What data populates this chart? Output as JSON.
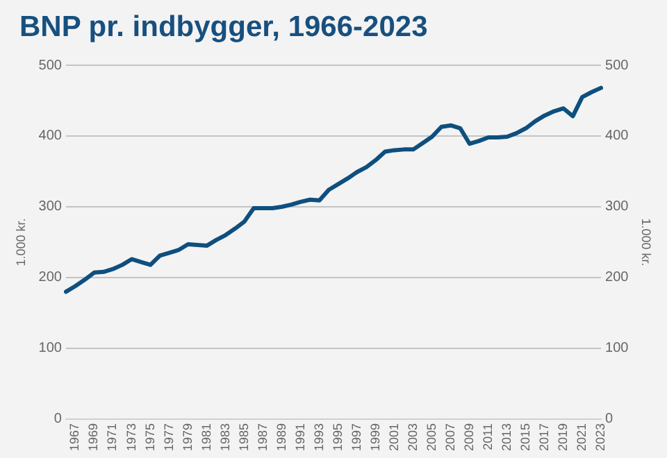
{
  "chart_data": {
    "type": "line",
    "title": "BNP pr. indbygger, 1966-2023",
    "ylabel": "1.000 kr.",
    "y2label": "1.000 kr.",
    "categories": [
      null,
      "1967",
      null,
      "1969",
      null,
      "1971",
      null,
      "1973",
      null,
      "1975",
      null,
      "1977",
      null,
      "1979",
      null,
      "1981",
      null,
      "1983",
      null,
      "1985",
      null,
      "1987",
      null,
      "1989",
      null,
      "1991",
      null,
      "1993",
      null,
      "1995",
      null,
      "1997",
      null,
      "1999",
      null,
      "2001",
      null,
      "2003",
      null,
      "2005",
      null,
      "2007",
      null,
      "2009",
      null,
      "2011",
      null,
      "2013",
      null,
      "2015",
      null,
      "2017",
      null,
      "2019",
      null,
      "2021",
      null,
      "2023"
    ],
    "series": [
      {
        "color": "#0e4f7e",
        "values": [
          180,
          188,
          197,
          207,
          208,
          212,
          218,
          226,
          222,
          218,
          231,
          235,
          239,
          247,
          246,
          245,
          253,
          260,
          269,
          279,
          298,
          298,
          298,
          300,
          303,
          307,
          310,
          309,
          324,
          332,
          340,
          349,
          356,
          366,
          378,
          380,
          381,
          381,
          390,
          399,
          413,
          415,
          411,
          389,
          393,
          398,
          398,
          399,
          404,
          411,
          421,
          429,
          435,
          439,
          428,
          455,
          462,
          468
        ]
      }
    ],
    "ylim": [
      0,
      500
    ],
    "yticks": [
      0,
      100,
      200,
      300,
      400,
      500
    ],
    "y2lim": [
      0,
      500
    ],
    "y2ticks": [
      0,
      100,
      200,
      300,
      400,
      500
    ],
    "grid": "y",
    "legend": false,
    "marker": "none",
    "line_style": "solid"
  }
}
